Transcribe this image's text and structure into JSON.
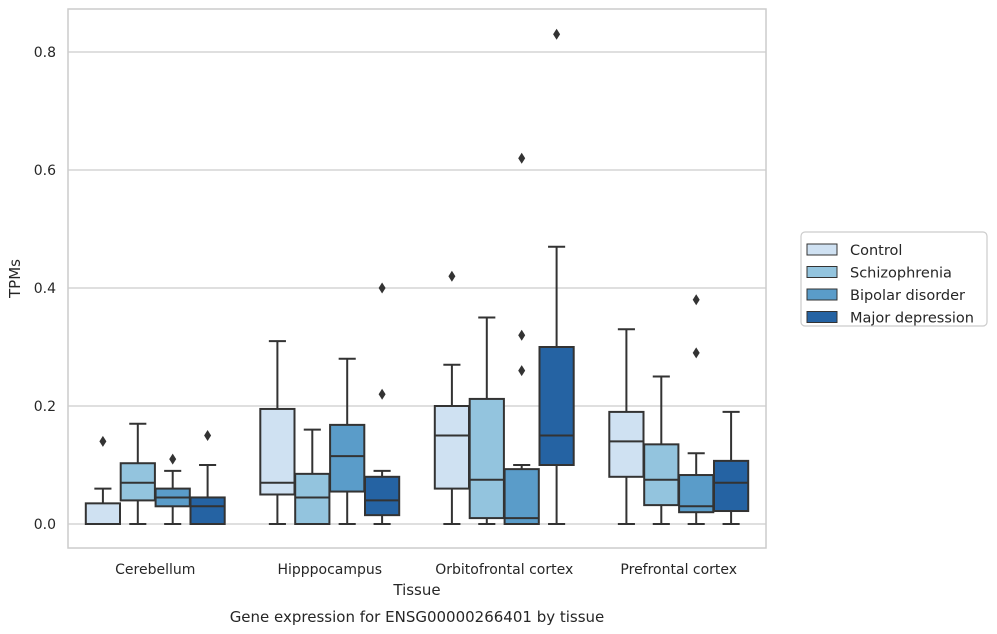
{
  "chart_data": {
    "type": "box",
    "xlabel": "Tissue",
    "ylabel": "TPMs",
    "caption": "Gene expression for ENSG00000266401 by tissue",
    "ylim": [
      -0.04,
      0.87
    ],
    "yticks": [
      "0.0",
      "0.2",
      "0.4",
      "0.6",
      "0.8"
    ],
    "ytick_values": [
      0.0,
      0.2,
      0.4,
      0.6,
      0.8
    ],
    "grid": true,
    "legend_position": "right",
    "categories": [
      "Cerebellum",
      "Hipppocampus",
      "Orbitofrontal cortex",
      "Prefrontal cortex"
    ],
    "series": [
      {
        "name": "Control",
        "color": "#cfe1f2",
        "boxes": [
          {
            "whislo": 0.0,
            "q1": 0.0,
            "med": 0.0,
            "q3": 0.035,
            "whishi": 0.06,
            "fliers": [
              0.14
            ]
          },
          {
            "whislo": 0.0,
            "q1": 0.05,
            "med": 0.07,
            "q3": 0.195,
            "whishi": 0.31,
            "fliers": []
          },
          {
            "whislo": 0.0,
            "q1": 0.06,
            "med": 0.15,
            "q3": 0.2,
            "whishi": 0.27,
            "fliers": [
              0.42
            ]
          },
          {
            "whislo": 0.0,
            "q1": 0.08,
            "med": 0.14,
            "q3": 0.19,
            "whishi": 0.33,
            "fliers": []
          }
        ]
      },
      {
        "name": "Schizophrenia",
        "color": "#93c4de",
        "boxes": [
          {
            "whislo": 0.0,
            "q1": 0.04,
            "med": 0.07,
            "q3": 0.103,
            "whishi": 0.17,
            "fliers": []
          },
          {
            "whislo": 0.0,
            "q1": 0.0,
            "med": 0.045,
            "q3": 0.085,
            "whishi": 0.16,
            "fliers": []
          },
          {
            "whislo": 0.0,
            "q1": 0.01,
            "med": 0.075,
            "q3": 0.212,
            "whishi": 0.35,
            "fliers": []
          },
          {
            "whislo": 0.0,
            "q1": 0.032,
            "med": 0.075,
            "q3": 0.135,
            "whishi": 0.25,
            "fliers": []
          }
        ]
      },
      {
        "name": "Bipolar disorder",
        "color": "#5a9cc9",
        "boxes": [
          {
            "whislo": 0.0,
            "q1": 0.03,
            "med": 0.045,
            "q3": 0.06,
            "whishi": 0.09,
            "fliers": [
              0.11
            ]
          },
          {
            "whislo": 0.0,
            "q1": 0.055,
            "med": 0.115,
            "q3": 0.168,
            "whishi": 0.28,
            "fliers": []
          },
          {
            "whislo": 0.0,
            "q1": 0.0,
            "med": 0.01,
            "q3": 0.093,
            "whishi": 0.1,
            "fliers": [
              0.26,
              0.32,
              0.62
            ]
          },
          {
            "whislo": 0.0,
            "q1": 0.02,
            "med": 0.03,
            "q3": 0.083,
            "whishi": 0.12,
            "fliers": [
              0.29,
              0.38
            ]
          }
        ]
      },
      {
        "name": "Major depression",
        "color": "#2563a3",
        "boxes": [
          {
            "whislo": 0.0,
            "q1": 0.0,
            "med": 0.03,
            "q3": 0.045,
            "whishi": 0.1,
            "fliers": [
              0.15
            ]
          },
          {
            "whislo": 0.0,
            "q1": 0.015,
            "med": 0.04,
            "q3": 0.08,
            "whishi": 0.09,
            "fliers": [
              0.22,
              0.4
            ]
          },
          {
            "whislo": 0.0,
            "q1": 0.1,
            "med": 0.15,
            "q3": 0.3,
            "whishi": 0.47,
            "fliers": [
              0.83
            ]
          },
          {
            "whislo": 0.0,
            "q1": 0.022,
            "med": 0.07,
            "q3": 0.107,
            "whishi": 0.19,
            "fliers": []
          }
        ]
      }
    ]
  },
  "colors": {
    "edge": "#333333",
    "grid": "#cccccc",
    "frame": "#cccccc"
  }
}
